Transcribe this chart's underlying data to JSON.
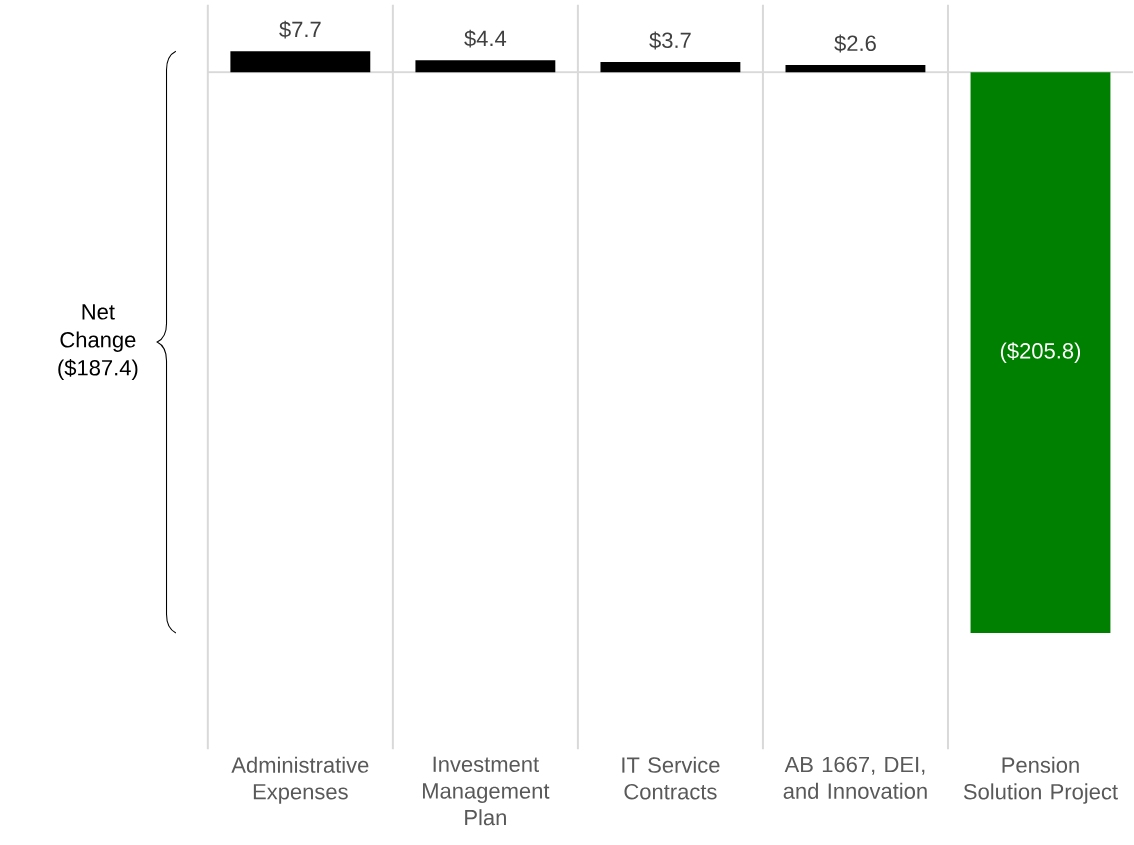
{
  "chart_data": {
    "type": "bar",
    "categories": [
      "Administrative Expenses",
      "Investment Management Plan",
      "IT Service Contracts",
      "AB 1667, DEI, and Innovation",
      "Pension Solution Project"
    ],
    "values": [
      7.7,
      4.4,
      3.7,
      2.6,
      -205.8
    ],
    "colors": [
      "#000000",
      "#000000",
      "#000000",
      "#000000",
      "#008000"
    ],
    "value_labels": [
      "$7.7",
      "$4.4",
      "$3.7",
      "$2.6",
      "($205.8)"
    ],
    "annotations": [
      "Net Change ($187.4)"
    ],
    "grid": "x",
    "tick_labels": "x"
  }
}
